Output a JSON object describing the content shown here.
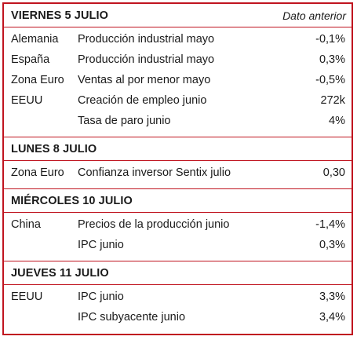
{
  "header_note": "Dato anterior",
  "sections": [
    {
      "title": "VIERNES 5 JULIO",
      "rows": [
        {
          "country": "Alemania",
          "indicator": "Producción industrial mayo",
          "value": "-0,1%"
        },
        {
          "country": "España",
          "indicator": "Producción industrial mayo",
          "value": "0,3%"
        },
        {
          "country": "Zona Euro",
          "indicator": "Ventas al por menor mayo",
          "value": "-0,5%"
        },
        {
          "country": "EEUU",
          "indicator": "Creación de empleo junio",
          "value": "272k"
        },
        {
          "country": "",
          "indicator": "Tasa de paro junio",
          "value": "4%"
        }
      ]
    },
    {
      "title": "LUNES 8 JULIO",
      "rows": [
        {
          "country": "Zona Euro",
          "indicator": "Confianza inversor Sentix julio",
          "value": "0,30"
        }
      ]
    },
    {
      "title": "MIÉRCOLES 10 JULIO",
      "rows": [
        {
          "country": "China",
          "indicator": "Precios de la producción junio",
          "value": "-1,4%"
        },
        {
          "country": "",
          "indicator": "IPC junio",
          "value": "0,3%"
        }
      ]
    },
    {
      "title": "JUEVES 11 JULIO",
      "rows": [
        {
          "country": "EEUU",
          "indicator": "IPC junio",
          "value": "3,3%"
        },
        {
          "country": "",
          "indicator": "IPC subyacente junio",
          "value": "3,4%"
        }
      ]
    }
  ]
}
